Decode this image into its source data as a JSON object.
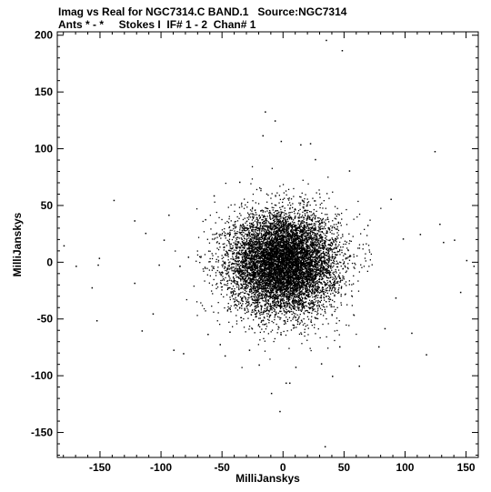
{
  "header": {
    "title_line1": "Imag vs Real for NGC7314.C BAND.1   Source:NGC7314",
    "title_line2": "Ants * - *     Stokes I  IF# 1 - 2  Chan# 1"
  },
  "chart_data": {
    "type": "scatter",
    "title": "Imag vs Real for NGC7314.C BAND.1   Source:NGC7314",
    "subtitle": "Ants * - *     Stokes I  IF# 1 - 2  Chan# 1",
    "xlabel": "MilliJanskys",
    "ylabel": "MilliJanskys",
    "xlim": [
      -185,
      160
    ],
    "ylim": [
      -172,
      203
    ],
    "xticks": [
      -150,
      -100,
      -50,
      0,
      50,
      100,
      150
    ],
    "yticks": [
      -150,
      -100,
      -50,
      0,
      50,
      100,
      150,
      200
    ],
    "xtick_labels": [
      "-150",
      "-100",
      "-50",
      "0",
      "50",
      "100",
      "150"
    ],
    "ytick_labels": [
      "-150",
      "-100",
      "-50",
      "0",
      "50",
      "100",
      "150",
      "200"
    ],
    "grid": false,
    "marker_color": "#000000",
    "dense_core": {
      "center": [
        0,
        0
      ],
      "sigma": [
        22,
        22
      ],
      "approx_points": 70000
    },
    "outliers": [
      [
        -180,
        15
      ],
      [
        -170,
        -3
      ],
      [
        -157,
        -22
      ],
      [
        -153,
        -51
      ],
      [
        -151,
        4
      ],
      [
        -152,
        -2
      ],
      [
        -139,
        55
      ],
      [
        -122,
        -18
      ],
      [
        -122,
        37
      ],
      [
        -116,
        -60
      ],
      [
        -113,
        26
      ],
      [
        -107,
        -45
      ],
      [
        -102,
        -2
      ],
      [
        -98,
        20
      ],
      [
        -94,
        42
      ],
      [
        -90,
        -77
      ],
      [
        -85,
        -3
      ],
      [
        -82,
        -80
      ],
      [
        -78,
        5
      ],
      [
        -64,
        38
      ],
      [
        -62,
        -63
      ],
      [
        -57,
        59
      ],
      [
        -52,
        -72
      ],
      [
        -48,
        -82
      ],
      [
        -44,
        -61
      ],
      [
        -36,
        71
      ],
      [
        -28,
        -77
      ],
      [
        -20,
        -90
      ],
      [
        -17,
        112
      ],
      [
        -10,
        -115
      ],
      [
        -7,
        125
      ],
      [
        -3,
        -131
      ],
      [
        -2,
        107
      ],
      [
        -15,
        133
      ],
      [
        2,
        -106
      ],
      [
        5,
        -106
      ],
      [
        10,
        -92
      ],
      [
        14,
        104
      ],
      [
        22,
        105
      ],
      [
        26,
        91
      ],
      [
        31,
        -89
      ],
      [
        34,
        -162
      ],
      [
        40,
        -100
      ],
      [
        46,
        -74
      ],
      [
        48,
        187
      ],
      [
        54,
        81
      ],
      [
        62,
        -91
      ],
      [
        69,
        33
      ],
      [
        78,
        -74
      ],
      [
        83,
        -58
      ],
      [
        88,
        56
      ],
      [
        92,
        -31
      ],
      [
        98,
        21
      ],
      [
        105,
        -62
      ],
      [
        112,
        25
      ],
      [
        117,
        -81
      ],
      [
        124,
        98
      ],
      [
        128,
        34
      ],
      [
        131,
        18
      ],
      [
        140,
        20
      ],
      [
        145,
        -26
      ],
      [
        150,
        2
      ],
      [
        156,
        -3
      ],
      [
        35,
        196
      ]
    ]
  }
}
